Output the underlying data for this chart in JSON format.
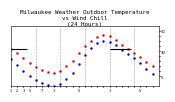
{
  "title": "Milwaukee Weather Outdoor Temperature\nvs Wind Chill\n(24 Hours)",
  "title_fontsize": 4.2,
  "background_color": "#ffffff",
  "grid_color": "#888888",
  "xlim": [
    0,
    24
  ],
  "ylim": [
    -5,
    55
  ],
  "ytick_positions": [
    5,
    10,
    15,
    20,
    25,
    30,
    35,
    40,
    45,
    50
  ],
  "ytick_labels": [
    "5",
    "",
    "",
    "",
    "",
    "30",
    "",
    "",
    "",
    "50"
  ],
  "xtick_positions": [
    0,
    1,
    2,
    3,
    4,
    5,
    6,
    7,
    8,
    9,
    10,
    11,
    12,
    13,
    14,
    15,
    16,
    17,
    18,
    19,
    20,
    21,
    22,
    23
  ],
  "xtick_labels": [
    "1",
    "2",
    "3",
    "5",
    "",
    "7",
    "",
    "1",
    "",
    "",
    "",
    "5",
    "",
    "",
    "",
    "",
    "1",
    "",
    "",
    "",
    "",
    "5",
    "",
    ""
  ],
  "temp_color": "#cc0000",
  "wind_color": "#0000cc",
  "marker_size": 1.5,
  "temp_x": [
    0,
    1,
    2,
    3,
    4,
    5,
    6,
    7,
    8,
    9,
    10,
    11,
    12,
    13,
    14,
    15,
    16,
    17,
    18,
    19,
    20,
    21,
    22,
    23
  ],
  "temp_y": [
    32,
    28,
    23,
    18,
    14,
    11,
    9,
    8,
    10,
    15,
    20,
    28,
    35,
    40,
    44,
    46,
    45,
    41,
    36,
    32,
    28,
    24,
    19,
    15
  ],
  "wind_x": [
    0,
    1,
    2,
    3,
    4,
    5,
    6,
    7,
    8,
    9,
    10,
    11,
    12,
    13,
    14,
    15,
    16,
    17,
    18,
    19,
    20,
    21,
    22,
    23
  ],
  "wind_y": [
    22,
    16,
    10,
    5,
    1,
    -2,
    -4,
    -5,
    -3,
    2,
    8,
    17,
    26,
    33,
    38,
    40,
    39,
    36,
    31,
    27,
    23,
    18,
    12,
    7
  ],
  "hline_color": "#000000",
  "hline_y": 32,
  "hline_x1": 0,
  "hline_x2": 2.5,
  "hline2_color": "#000000",
  "hline2_y": 32,
  "hline2_x1": 16,
  "hline2_x2": 19.5,
  "vgrid_x": [
    4,
    8,
    12,
    16,
    20
  ],
  "vgrid_color": "#999999",
  "vgrid_style": "--"
}
